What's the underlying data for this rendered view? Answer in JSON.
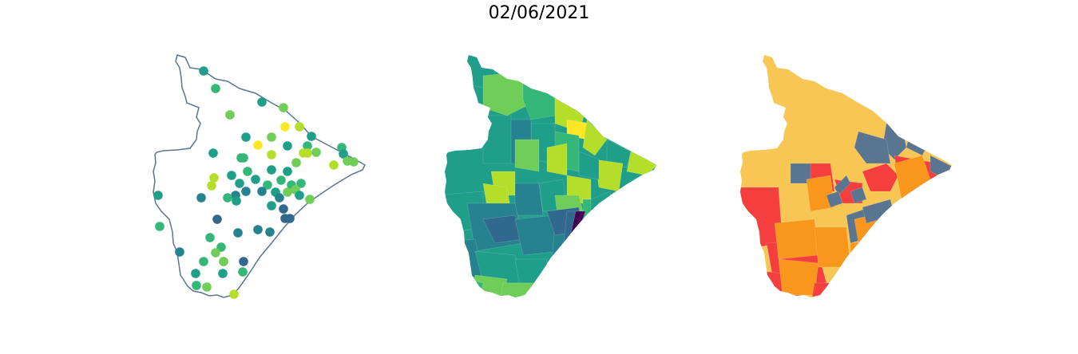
{
  "title": "02/06/2021",
  "colors": {
    "outline": "#5a7590",
    "viridis": [
      "#440154",
      "#31688e",
      "#26828e",
      "#1f9e89",
      "#35b779",
      "#6ece58",
      "#b5de2b",
      "#fde725"
    ],
    "risk": [
      "#f8c654",
      "#f9961c",
      "#f53f3f",
      "#5a7590"
    ]
  }
}
